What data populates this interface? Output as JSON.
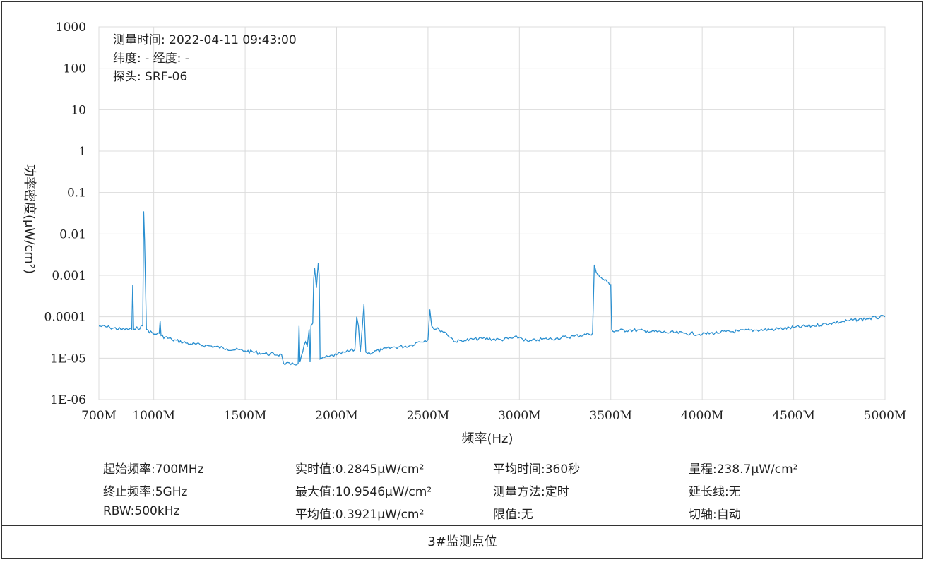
{
  "meta": {
    "measure_time": "测量时间: 2022-04-11 09:43:00",
    "lat_lon": "纬度: - 经度: -",
    "probe": "探头: SRF-06"
  },
  "info": {
    "start_freq": "起始频率:700MHz",
    "stop_freq": "终止频率:5GHz",
    "rbw": "RBW:500kHz",
    "realtime": "实时值:0.2845μW/cm²",
    "maximum": "最大值:10.9546μW/cm²",
    "average": "平均值:0.3921μW/cm²",
    "avg_time": "平均时间:360秒",
    "method": "测量方法:定时",
    "limit": "限值:无",
    "range": "量程:238.7μW/cm²",
    "extension": "延长线:无",
    "cut_axis": "切轴:自动"
  },
  "caption": "3#监测点位",
  "chart_data": {
    "type": "line",
    "title": "",
    "xlabel": "频率(Hz)",
    "ylabel": "功率密度(μW/cm²)",
    "xlim": [
      700,
      5000
    ],
    "ylim": [
      1e-06,
      1000
    ],
    "yscale": "log",
    "x_tick_values": [
      700,
      1000,
      1500,
      2000,
      2500,
      3000,
      3500,
      4000,
      4500,
      5000
    ],
    "x_ticks": [
      "700M",
      "1000M",
      "1500M",
      "2000M",
      "2500M",
      "3000M",
      "3500M",
      "4000M",
      "4500M",
      "5000M"
    ],
    "y_tick_values": [
      1e-06,
      1e-05,
      0.0001,
      0.001,
      0.01,
      0.1,
      1,
      10,
      100,
      1000
    ],
    "y_ticks": [
      "1E-06",
      "1E-05",
      "0.0001",
      "0.001",
      "0.01",
      "0.1",
      "1",
      "10",
      "100",
      "1000"
    ],
    "grid": true,
    "color": "#2a8fd0",
    "series": [
      {
        "x": [
          700,
          760,
          820,
          880,
          885,
          890,
          900,
          940,
          945,
          950,
          960,
          1000,
          1030,
          1035,
          1040,
          1100,
          1200,
          1300,
          1400,
          1500,
          1600,
          1700,
          1710,
          1750,
          1790,
          1795,
          1800,
          1830,
          1840,
          1850,
          1855,
          1860,
          1870,
          1875,
          1880,
          1890,
          1900,
          1905,
          1910,
          1915,
          1920,
          1960,
          2000,
          2050,
          2100,
          2110,
          2120,
          2130,
          2150,
          2155,
          2160,
          2170,
          2250,
          2300,
          2400,
          2450,
          2500,
          2510,
          2520,
          2540,
          2560,
          2600,
          2650,
          2700,
          2800,
          2900,
          3000,
          3050,
          3100,
          3200,
          3300,
          3380,
          3400,
          3410,
          3420,
          3440,
          3460,
          3480,
          3500,
          3505,
          3510,
          3600,
          3700,
          3800,
          3900,
          4000,
          4100,
          4200,
          4300,
          4400,
          4500,
          4600,
          4700,
          4800,
          4900,
          5000
        ],
        "y": [
          6e-05,
          5.5e-05,
          5e-05,
          5e-05,
          0.0006,
          5e-05,
          5e-05,
          6e-05,
          0.035,
          0.007,
          5e-05,
          3.8e-05,
          4e-05,
          8e-05,
          3.5e-05,
          2.8e-05,
          2.2e-05,
          2e-05,
          1.7e-05,
          1.5e-05,
          1.3e-05,
          1.2e-05,
          7.5e-06,
          7e-06,
          7.5e-06,
          6e-05,
          8e-06,
          2.5e-05,
          2e-05,
          5e-05,
          8e-06,
          6e-05,
          7e-05,
          0.0008,
          0.0015,
          0.0005,
          0.002,
          0.001,
          9.5e-06,
          1e-05,
          1e-05,
          1.1e-05,
          1.2e-05,
          1.4e-05,
          1.6e-05,
          0.0001,
          6e-05,
          1.4e-05,
          0.0002,
          5e-05,
          1.4e-05,
          1.3e-05,
          1.6e-05,
          1.8e-05,
          2e-05,
          2.5e-05,
          2.8e-05,
          0.00015,
          6e-05,
          5e-05,
          5e-05,
          4e-05,
          2.5e-05,
          2.7e-05,
          3e-05,
          2.8e-05,
          3.2e-05,
          2.5e-05,
          2.8e-05,
          3e-05,
          3.4e-05,
          3.8e-05,
          4e-05,
          0.0018,
          0.0012,
          0.0009,
          0.0008,
          0.0007,
          0.0006,
          5e-05,
          4.5e-05,
          4.8e-05,
          4.5e-05,
          4.2e-05,
          4e-05,
          3.8e-05,
          4.2e-05,
          4.5e-05,
          4.8e-05,
          5e-05,
          5.5e-05,
          6e-05,
          7e-05,
          8e-05,
          9e-05,
          0.0001
        ]
      }
    ]
  }
}
